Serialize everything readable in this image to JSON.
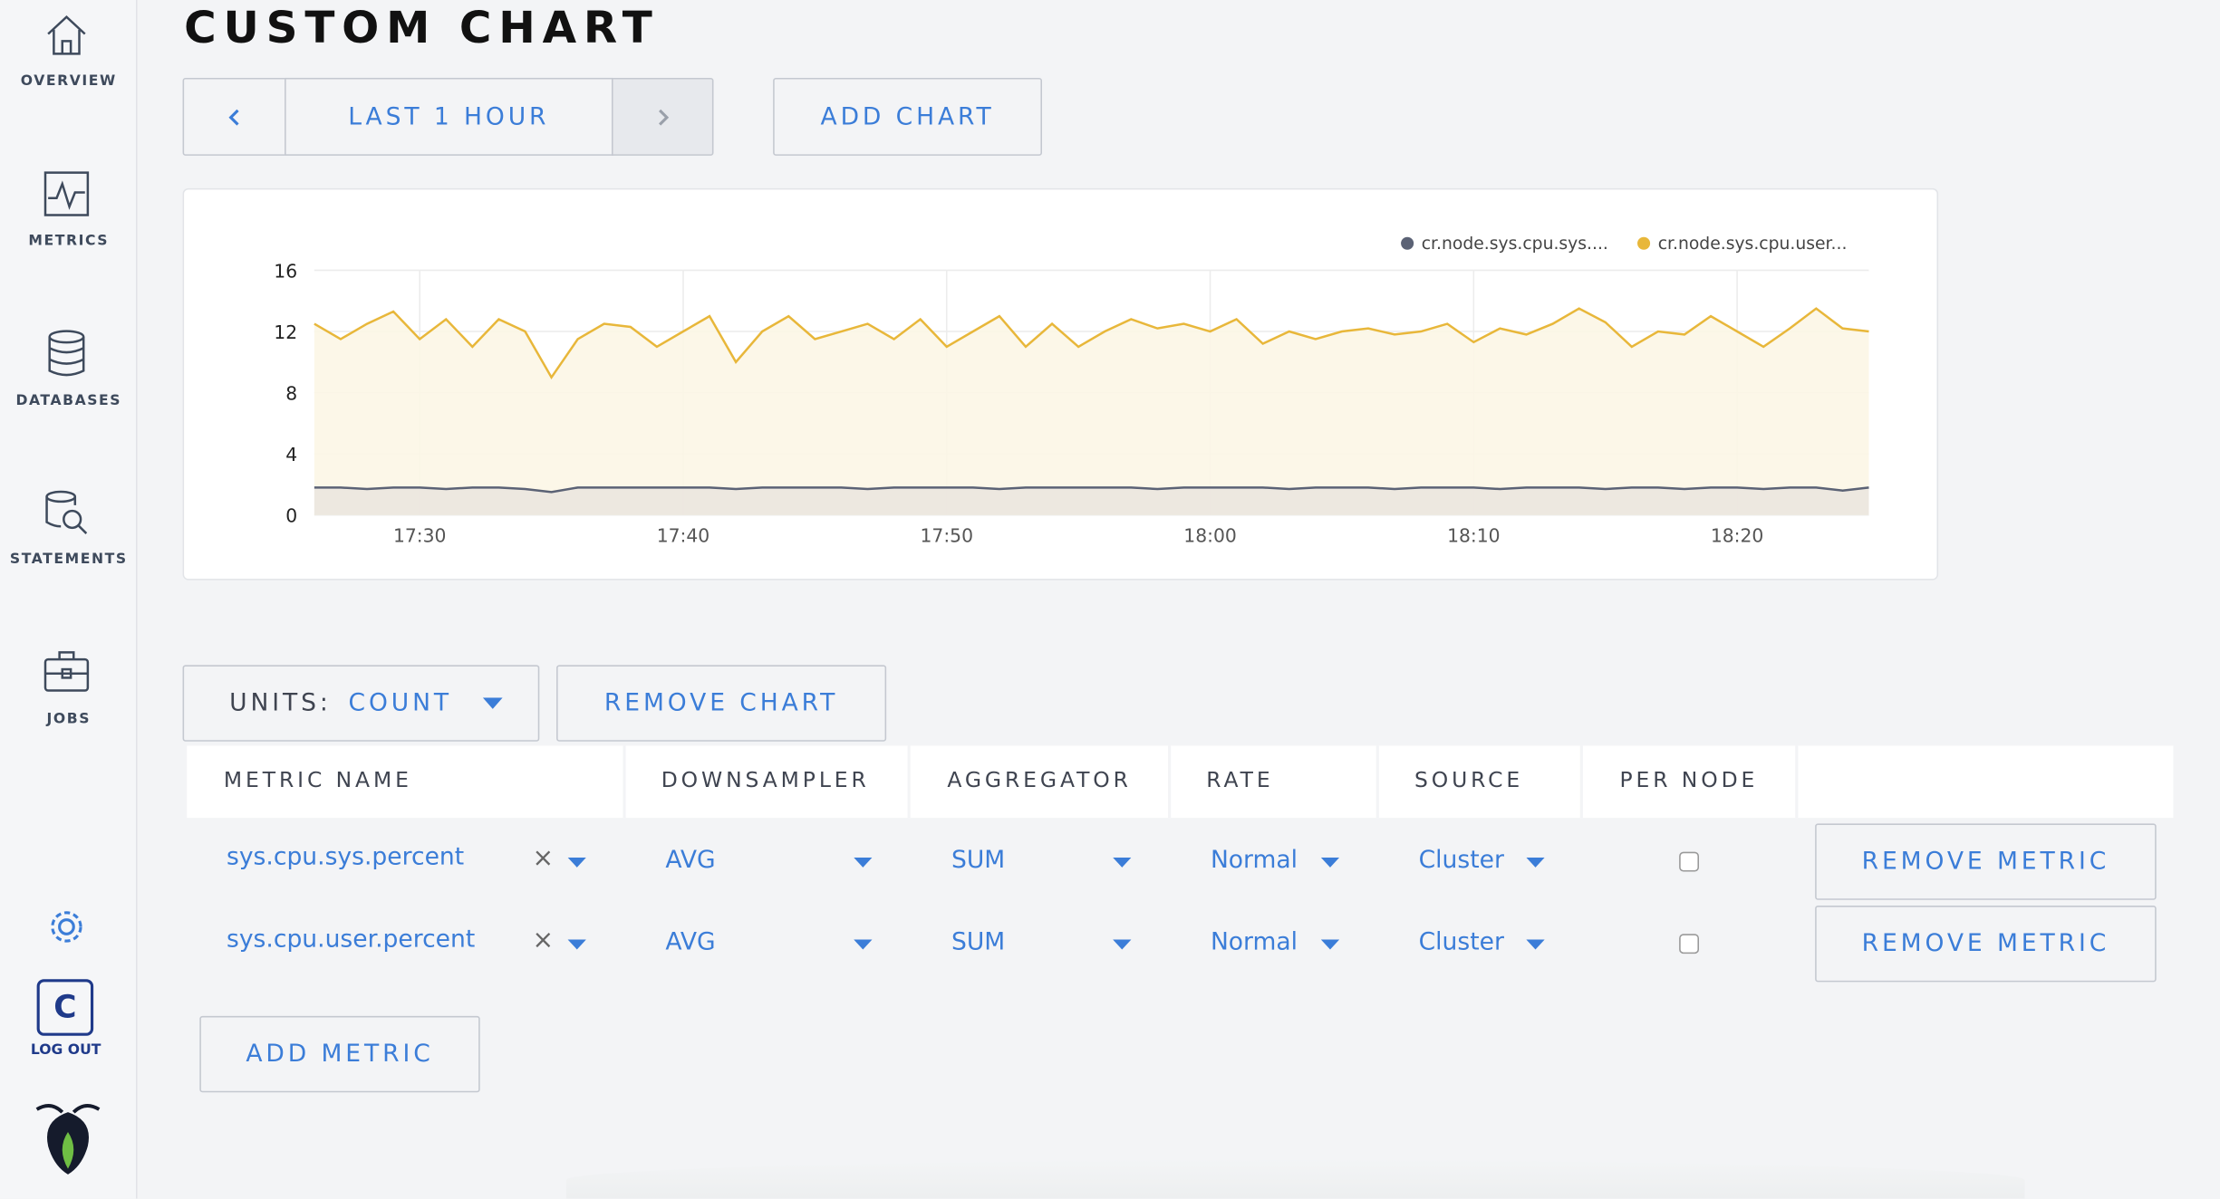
{
  "nav": {
    "items": [
      "OVERVIEW",
      "METRICS",
      "DATABASES",
      "STATEMENTS",
      "JOBS"
    ],
    "avatar": "C",
    "logout": "LOG OUT"
  },
  "header": {
    "title": "CUSTOM CHART"
  },
  "toolbar": {
    "time_range": "LAST 1 HOUR",
    "add_chart": "ADD CHART"
  },
  "chart_data": {
    "type": "line",
    "area": true,
    "grid": true,
    "legend": "top-right",
    "x": [
      "17:26",
      "17:27",
      "17:28",
      "17:29",
      "17:30",
      "17:31",
      "17:32",
      "17:33",
      "17:34",
      "17:35",
      "17:36",
      "17:37",
      "17:38",
      "17:39",
      "17:40",
      "17:41",
      "17:42",
      "17:43",
      "17:44",
      "17:45",
      "17:46",
      "17:47",
      "17:48",
      "17:49",
      "17:50",
      "17:51",
      "17:52",
      "17:53",
      "17:54",
      "17:55",
      "17:56",
      "17:57",
      "17:58",
      "17:59",
      "18:00",
      "18:01",
      "18:02",
      "18:03",
      "18:04",
      "18:05",
      "18:06",
      "18:07",
      "18:08",
      "18:09",
      "18:10",
      "18:11",
      "18:12",
      "18:13",
      "18:14",
      "18:15",
      "18:16",
      "18:17",
      "18:18",
      "18:19",
      "18:20",
      "18:21",
      "18:22",
      "18:23",
      "18:24",
      "18:25"
    ],
    "series": [
      {
        "name": "cr.node.sys.cpu.sys....",
        "color": "#5b6275",
        "values": [
          1.8,
          1.8,
          1.7,
          1.8,
          1.8,
          1.7,
          1.8,
          1.8,
          1.7,
          1.5,
          1.8,
          1.8,
          1.8,
          1.8,
          1.8,
          1.8,
          1.7,
          1.8,
          1.8,
          1.8,
          1.8,
          1.7,
          1.8,
          1.8,
          1.8,
          1.8,
          1.7,
          1.8,
          1.8,
          1.8,
          1.8,
          1.8,
          1.7,
          1.8,
          1.8,
          1.8,
          1.8,
          1.7,
          1.8,
          1.8,
          1.8,
          1.7,
          1.8,
          1.8,
          1.8,
          1.7,
          1.8,
          1.8,
          1.8,
          1.7,
          1.8,
          1.8,
          1.7,
          1.8,
          1.8,
          1.7,
          1.8,
          1.8,
          1.6,
          1.8
        ]
      },
      {
        "name": "cr.node.sys.cpu.user...",
        "color": "#e8b73a",
        "values": [
          12.5,
          11.5,
          12.5,
          13.3,
          11.5,
          12.8,
          11.0,
          12.8,
          12.0,
          9.0,
          11.5,
          12.5,
          12.3,
          11.0,
          12.0,
          13.0,
          10.0,
          12.0,
          13.0,
          11.5,
          12.0,
          12.5,
          11.5,
          12.8,
          11.0,
          12.0,
          13.0,
          11.0,
          12.5,
          11.0,
          12.0,
          12.8,
          12.2,
          12.5,
          12.0,
          12.8,
          11.2,
          12.0,
          11.5,
          12.0,
          12.2,
          11.8,
          12.0,
          12.5,
          11.3,
          12.2,
          11.8,
          12.5,
          13.5,
          12.6,
          11.0,
          12.0,
          11.8,
          13.0,
          12.0,
          11.0,
          12.2,
          13.5,
          12.2,
          12.0
        ]
      }
    ],
    "xlim": [
      "17:26",
      "18:25"
    ],
    "xticks": [
      "17:30",
      "17:40",
      "17:50",
      "18:00",
      "18:10",
      "18:20"
    ],
    "ylim": [
      0,
      16
    ],
    "yticks": [
      0,
      4,
      8,
      12,
      16
    ]
  },
  "controls": {
    "units_label": "UNITS:",
    "units_value": "COUNT",
    "remove_chart": "REMOVE CHART"
  },
  "table": {
    "columns": [
      "METRIC NAME",
      "DOWNSAMPLER",
      "AGGREGATOR",
      "RATE",
      "SOURCE",
      "PER NODE"
    ],
    "rows": [
      [
        "sys.cpu.sys.percent",
        "AVG",
        "SUM",
        "Normal",
        "Cluster",
        "REMOVE METRIC"
      ],
      [
        "sys.cpu.user.percent",
        "AVG",
        "SUM",
        "Normal",
        "Cluster",
        "REMOVE METRIC"
      ]
    ]
  },
  "add_metric": "ADD METRIC"
}
